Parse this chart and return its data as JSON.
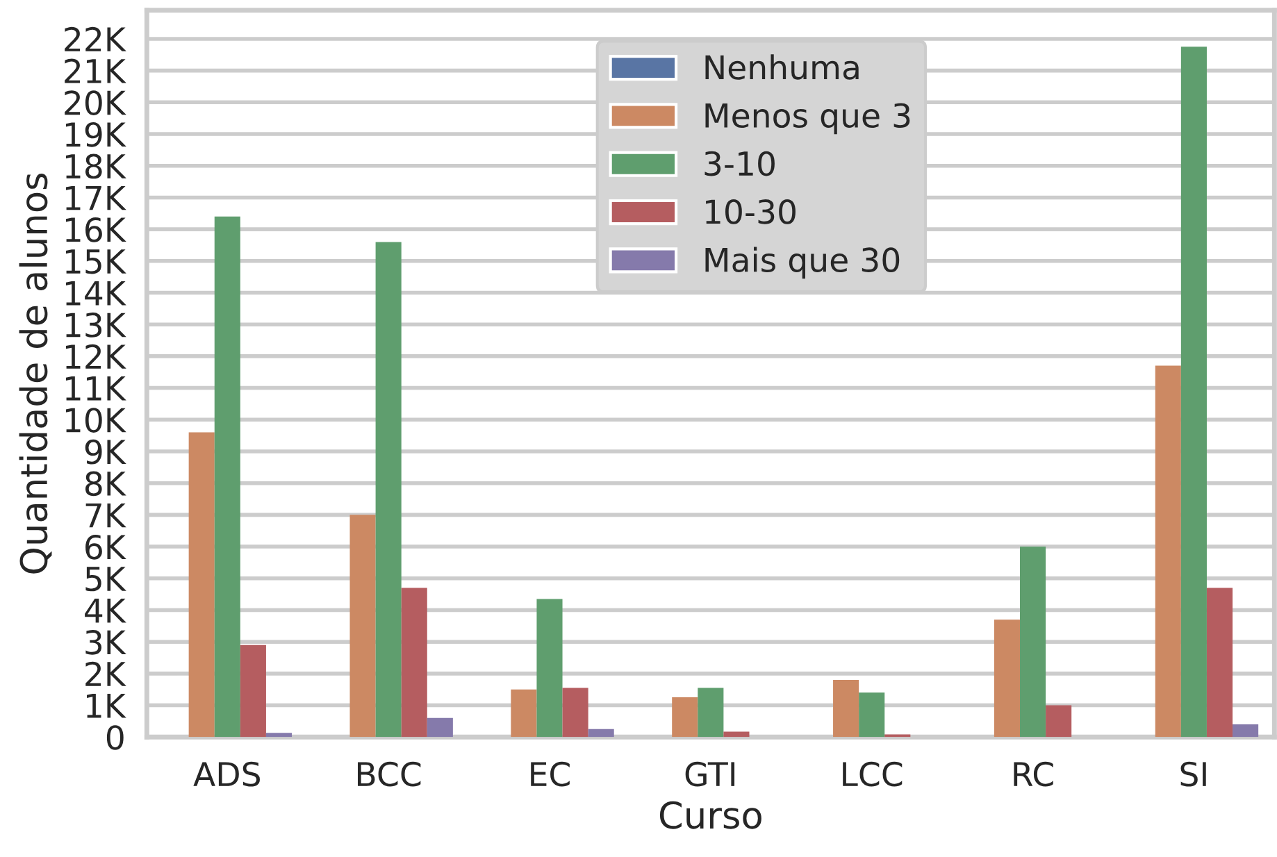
{
  "chart_data": {
    "type": "bar",
    "xlabel": "Curso",
    "ylabel": "Quantidade de alunos",
    "categories": [
      "ADS",
      "BCC",
      "EC",
      "GTI",
      "LCC",
      "RC",
      "SI"
    ],
    "series": [
      {
        "name": "Nenhuma",
        "color": "#5975a4",
        "values": [
          0,
          0,
          0,
          0,
          0,
          0,
          0
        ]
      },
      {
        "name": "Menos que 3",
        "color": "#cc8963",
        "values": [
          9600,
          7000,
          1500,
          1250,
          1800,
          3700,
          11700
        ]
      },
      {
        "name": "3-10",
        "color": "#5f9e6e",
        "values": [
          16400,
          15600,
          4350,
          1550,
          1400,
          6000,
          21750
        ]
      },
      {
        "name": "10-30",
        "color": "#b55d60",
        "values": [
          2900,
          4700,
          1550,
          170,
          80,
          1000,
          4700
        ]
      },
      {
        "name": "Mais que 30",
        "color": "#857aab",
        "values": [
          130,
          600,
          250,
          0,
          0,
          0,
          400
        ]
      }
    ],
    "ylim": [
      0,
      22900
    ],
    "yticks": [
      {
        "value": 0,
        "label": "0"
      },
      {
        "value": 1000,
        "label": "1K"
      },
      {
        "value": 2000,
        "label": "2K"
      },
      {
        "value": 3000,
        "label": "3K"
      },
      {
        "value": 4000,
        "label": "4K"
      },
      {
        "value": 5000,
        "label": "5K"
      },
      {
        "value": 6000,
        "label": "6K"
      },
      {
        "value": 7000,
        "label": "7K"
      },
      {
        "value": 8000,
        "label": "8K"
      },
      {
        "value": 9000,
        "label": "9K"
      },
      {
        "value": 10000,
        "label": "10K"
      },
      {
        "value": 11000,
        "label": "11K"
      },
      {
        "value": 12000,
        "label": "12K"
      },
      {
        "value": 13000,
        "label": "13K"
      },
      {
        "value": 14000,
        "label": "14K"
      },
      {
        "value": 15000,
        "label": "15K"
      },
      {
        "value": 16000,
        "label": "16K"
      },
      {
        "value": 17000,
        "label": "17K"
      },
      {
        "value": 18000,
        "label": "18K"
      },
      {
        "value": 19000,
        "label": "19K"
      },
      {
        "value": 20000,
        "label": "20K"
      },
      {
        "value": 21000,
        "label": "21K"
      },
      {
        "value": 22000,
        "label": "22K"
      }
    ],
    "grid": "y",
    "legend": "top"
  }
}
